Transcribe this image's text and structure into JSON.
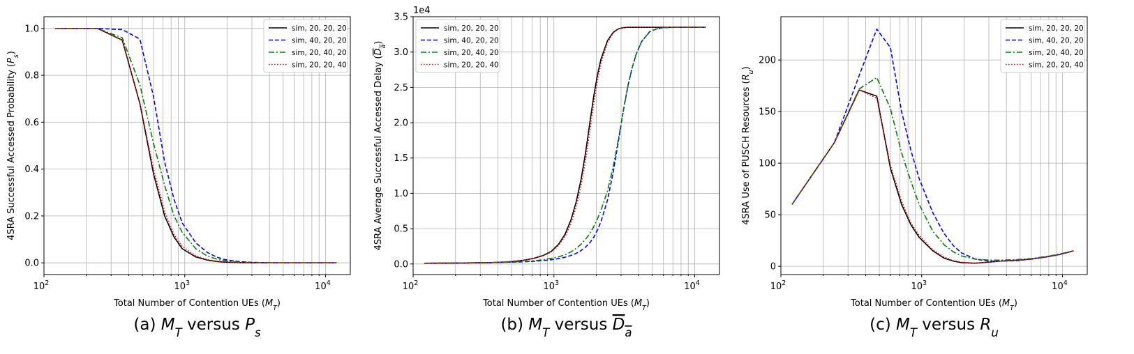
{
  "chart_data": [
    {
      "type": "line",
      "caption": "(a) $M_T$ versus $P_s$",
      "xlabel": "Total Number of Contention UEs ($M_T$)",
      "ylabel": "4SRA Successful Accessed Probability ($P_s$)",
      "xscale": "log",
      "xlim": [
        100,
        15000
      ],
      "ylim": [
        -0.05,
        1.05
      ],
      "yticks": [
        0.0,
        0.2,
        0.4,
        0.6,
        0.8,
        1.0
      ],
      "ytick_labels": [
        "0.0",
        "0.2",
        "0.4",
        "0.6",
        "0.8",
        "1.0"
      ],
      "xticks": [
        100,
        1000,
        10000
      ],
      "xtick_base": "10",
      "xtick_exps": [
        "2",
        "3",
        "4"
      ],
      "yoffset": "",
      "grid": true,
      "legend_loc": "upper right",
      "x": [
        120,
        240,
        360,
        480,
        600,
        720,
        840,
        960,
        1200,
        1440,
        1680,
        1920,
        2400,
        3000,
        3600,
        4800,
        6000,
        7200,
        8400,
        9600,
        12000
      ],
      "series": [
        {
          "name": "sim, 20, 20, 20",
          "color": "#000000",
          "style": "solid",
          "values": [
            1.0,
            1.0,
            0.95,
            0.68,
            0.38,
            0.2,
            0.11,
            0.06,
            0.025,
            0.012,
            0.006,
            0.003,
            0.001,
            0.0,
            0.0,
            0.0,
            0.0,
            0.0,
            0.0,
            0.0,
            0.0
          ]
        },
        {
          "name": "sim, 40, 20, 20",
          "color": "#0000ff",
          "style": "dashed",
          "values": [
            1.0,
            1.0,
            0.995,
            0.955,
            0.71,
            0.43,
            0.27,
            0.17,
            0.085,
            0.045,
            0.025,
            0.014,
            0.006,
            0.002,
            0.001,
            0.0,
            0.0,
            0.0,
            0.0,
            0.0,
            0.0
          ]
        },
        {
          "name": "sim, 20, 40, 20",
          "color": "#008000",
          "style": "dashdot",
          "values": [
            1.0,
            1.0,
            0.96,
            0.76,
            0.51,
            0.33,
            0.2,
            0.13,
            0.06,
            0.03,
            0.016,
            0.009,
            0.003,
            0.001,
            0.0,
            0.0,
            0.0,
            0.0,
            0.0,
            0.0,
            0.0
          ]
        },
        {
          "name": "sim, 20, 20, 40",
          "color": "#ff0000",
          "style": "dotted",
          "values": [
            1.0,
            1.0,
            0.95,
            0.68,
            0.4,
            0.22,
            0.12,
            0.07,
            0.03,
            0.014,
            0.007,
            0.004,
            0.001,
            0.0,
            0.0,
            0.0,
            0.0,
            0.0,
            0.0,
            0.0,
            0.0
          ]
        }
      ]
    },
    {
      "type": "line",
      "caption": "(b) $M_T$ versus $\\overline{D_a}$",
      "xlabel": "Total Number of Contention UEs ($M_T$)",
      "ylabel": "4SRA Average Successful Accessed Delay ($\\overline{D_a}$)",
      "xscale": "log",
      "xlim": [
        100,
        15000
      ],
      "ylim": [
        -1500,
        35000
      ],
      "yticks": [
        0,
        5000,
        10000,
        15000,
        20000,
        25000,
        30000,
        35000
      ],
      "ytick_labels": [
        "0.0",
        "0.5",
        "1.0",
        "1.5",
        "2.0",
        "2.5",
        "3.0",
        "3.5"
      ],
      "xticks": [
        100,
        1000,
        10000
      ],
      "xtick_base": "10",
      "xtick_exps": [
        "2",
        "3",
        "4"
      ],
      "yoffset": "1e4",
      "grid": true,
      "legend_loc": "upper left",
      "x": [
        120,
        240,
        360,
        480,
        600,
        720,
        840,
        960,
        1080,
        1200,
        1320,
        1440,
        1560,
        1680,
        1800,
        1920,
        2040,
        2160,
        2400,
        2640,
        2880,
        3120,
        3360,
        3600,
        3840,
        4200,
        4800,
        5400,
        6000,
        7200,
        8400,
        9600,
        12000
      ],
      "series": [
        {
          "name": "sim, 20, 20, 20",
          "color": "#000000",
          "style": "solid",
          "values": [
            100,
            150,
            200,
            300,
            500,
            800,
            1200,
            1800,
            2800,
            4200,
            6200,
            8800,
            12000,
            15800,
            20000,
            23800,
            26800,
            29000,
            31600,
            32800,
            33300,
            33450,
            33500,
            33500,
            33500,
            33500,
            33500,
            33500,
            33500,
            33500,
            33500,
            33500,
            33500
          ]
        },
        {
          "name": "sim, 40, 20, 20",
          "color": "#0000ff",
          "style": "dashed",
          "values": [
            100,
            150,
            200,
            250,
            300,
            380,
            480,
            600,
            760,
            950,
            1200,
            1500,
            1900,
            2400,
            3000,
            3800,
            4800,
            6000,
            9000,
            13000,
            17500,
            21800,
            25300,
            27800,
            29700,
            31500,
            32900,
            33300,
            33450,
            33500,
            33500,
            33500,
            33500
          ]
        },
        {
          "name": "sim, 20, 40, 20",
          "color": "#008000",
          "style": "dashdot",
          "values": [
            100,
            150,
            200,
            250,
            350,
            450,
            600,
            800,
            1000,
            1300,
            1700,
            2200,
            2800,
            3500,
            4300,
            5300,
            6400,
            7600,
            10300,
            13800,
            17800,
            21800,
            25200,
            27800,
            29700,
            31500,
            32900,
            33300,
            33450,
            33500,
            33500,
            33500,
            33500
          ]
        },
        {
          "name": "sim, 20, 20, 40",
          "color": "#ff0000",
          "style": "dotted",
          "values": [
            100,
            150,
            200,
            300,
            500,
            800,
            1200,
            1700,
            2600,
            3900,
            5700,
            8100,
            11100,
            14700,
            18800,
            22700,
            26000,
            28400,
            31300,
            32700,
            33300,
            33450,
            33500,
            33500,
            33500,
            33500,
            33500,
            33500,
            33500,
            33500,
            33500,
            33500,
            33500
          ]
        }
      ]
    },
    {
      "type": "line",
      "caption": "(c) $M_T$ versus $R_u$",
      "xlabel": "Total Number of Contention UEs ($M_T$)",
      "ylabel": "4SRA Use of PUSCH Resources ($R_u$)",
      "xscale": "log",
      "xlim": [
        100,
        15000
      ],
      "ylim": [
        -8,
        242
      ],
      "yticks": [
        0,
        50,
        100,
        150,
        200
      ],
      "ytick_labels": [
        "0",
        "50",
        "100",
        "150",
        "200"
      ],
      "xticks": [
        100,
        1000,
        10000
      ],
      "xtick_base": "10",
      "xtick_exps": [
        "2",
        "3",
        "4"
      ],
      "yoffset": "",
      "grid": true,
      "legend_loc": "upper right",
      "x": [
        120,
        240,
        360,
        480,
        600,
        720,
        840,
        960,
        1200,
        1440,
        1680,
        1920,
        2400,
        3000,
        3600,
        4800,
        6000,
        7200,
        8400,
        9600,
        12000
      ],
      "series": [
        {
          "name": "sim, 20, 20, 20",
          "color": "#000000",
          "style": "solid",
          "values": [
            60,
            120,
            171,
            165,
            95,
            60,
            40,
            28,
            15,
            8,
            5,
            3.5,
            3,
            4,
            5,
            6,
            7,
            8.5,
            10,
            11.5,
            15
          ]
        },
        {
          "name": "sim, 40, 20, 20",
          "color": "#0000ff",
          "style": "dashed",
          "values": [
            60,
            120,
            185,
            230,
            212,
            150,
            112,
            85,
            52,
            32,
            20,
            13,
            7,
            5,
            5,
            5.5,
            7,
            8.5,
            10,
            11.5,
            15
          ]
        },
        {
          "name": "sim, 20, 40, 20",
          "color": "#008000",
          "style": "dashdot",
          "values": [
            60,
            120,
            172,
            183,
            153,
            110,
            82,
            60,
            34,
            21,
            14,
            10,
            7,
            6,
            6,
            6.5,
            7.5,
            9,
            10.5,
            12,
            15
          ]
        },
        {
          "name": "sim, 20, 20, 40",
          "color": "#ff0000",
          "style": "dotted",
          "values": [
            60,
            120,
            171,
            163,
            98,
            63,
            42,
            30,
            16,
            9,
            5.5,
            4,
            3,
            4,
            5,
            6,
            7,
            8.5,
            10,
            11.5,
            15
          ]
        }
      ]
    }
  ]
}
